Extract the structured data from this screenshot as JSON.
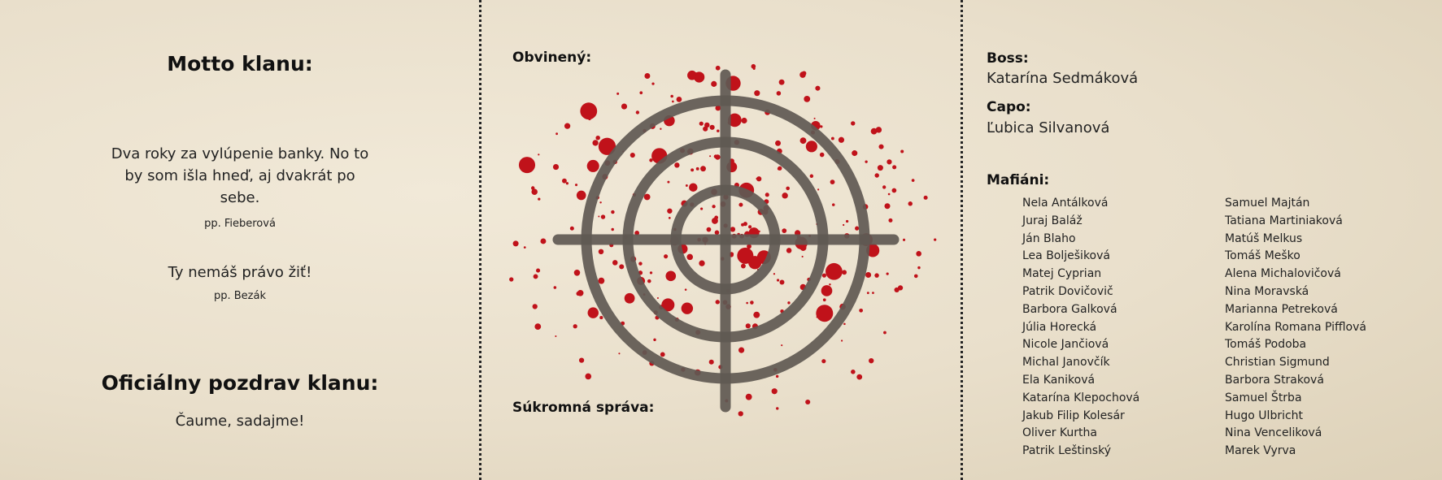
{
  "motto": {
    "title": "Motto klanu:",
    "quotes": [
      {
        "text": "Dva roky za vylúpenie banky. No to by som išla hneď, aj dvakrát po sebe.",
        "author": "pp. Fieberová"
      },
      {
        "text": "Ty nemáš právo žiť!",
        "author": "pp. Bezák"
      }
    ]
  },
  "greeting": {
    "title": "Oficiálny pozdrav klanu:",
    "text": "Čaume, sadajme!"
  },
  "center": {
    "accused_label": "Obvinený:",
    "private_message_label": "Súkromná správa:",
    "icon": "crosshair-target-with-blood-splatter",
    "colors": {
      "target": "#5f5952",
      "blood": "#c0121a"
    }
  },
  "roles": {
    "boss_label": "Boss:",
    "boss": "Katarína Sedmáková",
    "capo_label": "Capo:",
    "capo": "Ľubica Silvanová",
    "members_label": "Mafiáni:",
    "members_col1": [
      "Nela Antálková",
      "Juraj Baláž",
      "Ján Blaho",
      "Lea Bolješiková",
      "Matej Cyprian",
      "Patrik Dovičovič",
      "Barbora Galková",
      "Júlia Horecká",
      "Nicole Jančiová",
      "Michal Janovčík",
      "Ela Kaniková",
      "Katarína Klepochová",
      "Jakub Filip Kolesár",
      "Oliver Kurtha",
      "Patrik Leštinský"
    ],
    "members_col2": [
      "Samuel Majtán",
      "Tatiana Martiniaková",
      "Matúš Melkus",
      "Tomáš Meško",
      "Alena Michalovičová",
      "Nina Moravská",
      "Marianna Petreková",
      "Karolína Romana Pifflová",
      "Tomáš Podoba",
      "Christian Sigmund",
      "Barbora Straková",
      "Samuel Štrba",
      "Hugo Ulbricht",
      "Nina Venceliková",
      "Marek Vyrva"
    ]
  }
}
